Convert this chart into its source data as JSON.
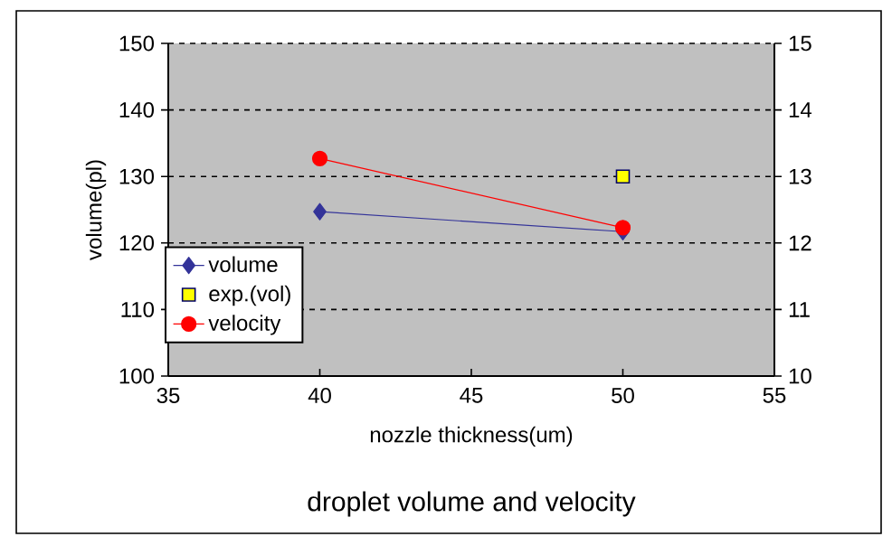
{
  "chart_data": {
    "type": "line",
    "title": "droplet volume and velocity",
    "xlabel": "nozzle thickness(um)",
    "ylabel": "volume(pl)",
    "xlim": [
      35,
      55
    ],
    "xticks": [
      35,
      40,
      45,
      50,
      55
    ],
    "ylim": [
      100,
      150
    ],
    "yticks": [
      100,
      110,
      120,
      130,
      140,
      150
    ],
    "x": [
      40,
      50
    ],
    "y2lim": [
      10,
      15
    ],
    "y2ticks": [
      10,
      11,
      12,
      13,
      14,
      15
    ],
    "grid": "y",
    "legend": "left",
    "series": [
      {
        "name": "volume",
        "color": "#333399",
        "marker": "diamond",
        "values": [
          124.7,
          121.7
        ]
      },
      {
        "name": "exp.(vol)",
        "type": "scatter",
        "color": "#ffff00",
        "marker": "square",
        "x": [
          50
        ],
        "values": [
          130
        ]
      },
      {
        "name": "velocity",
        "color": "#ff0000",
        "marker": "circle",
        "axis": "y2",
        "values": [
          13.27,
          12.23
        ]
      }
    ]
  }
}
